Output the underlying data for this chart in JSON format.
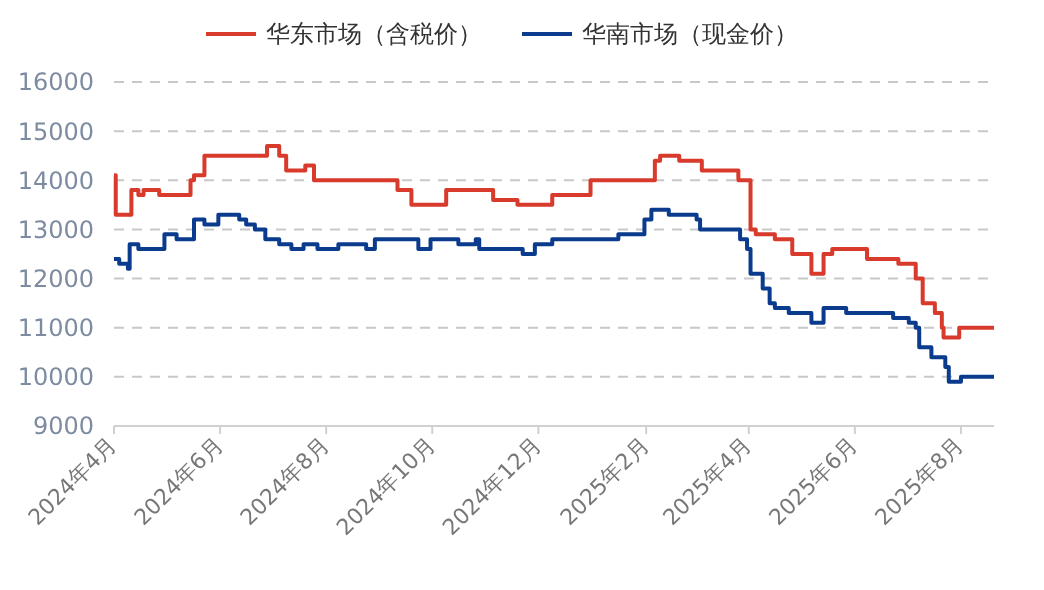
{
  "chart_data": {
    "type": "step",
    "legend": "top",
    "grid": "y",
    "marker": "none",
    "line_style": "solid",
    "xlim": [
      "2024-04-08",
      "2025-08-27"
    ],
    "xticks": [
      {
        "value": "2024-04-08",
        "label": "2024年4月"
      },
      {
        "value": "2024-06-08",
        "label": "2024年6月"
      },
      {
        "value": "2024-08-08",
        "label": "2024年8月"
      },
      {
        "value": "2024-10-08",
        "label": "2024年10月"
      },
      {
        "value": "2024-12-08",
        "label": "2024年12月"
      },
      {
        "value": "2025-02-08",
        "label": "2025年2月"
      },
      {
        "value": "2025-04-08",
        "label": "2025年4月"
      },
      {
        "value": "2025-06-08",
        "label": "2025年6月"
      },
      {
        "value": "2025-08-08",
        "label": "2025年8月"
      }
    ],
    "ylim": [
      9000,
      16000
    ],
    "yticks": [
      9000,
      10000,
      11000,
      12000,
      13000,
      14000,
      15000,
      16000
    ],
    "series": [
      {
        "name": "华东市场（含税价）",
        "color": "#d83a2c",
        "x": [
          "2024-04-08",
          "2024-04-09",
          "2024-04-18",
          "2024-04-22",
          "2024-04-25",
          "2024-05-04",
          "2024-05-22",
          "2024-05-24",
          "2024-05-30",
          "2024-07-05",
          "2024-07-12",
          "2024-07-16",
          "2024-07-27",
          "2024-08-01",
          "2024-09-18",
          "2024-09-26",
          "2024-10-16",
          "2024-11-12",
          "2024-11-26",
          "2024-12-16",
          "2025-01-07",
          "2025-02-13",
          "2025-02-16",
          "2025-02-27",
          "2025-03-12",
          "2025-04-02",
          "2025-04-09",
          "2025-04-12",
          "2025-04-23",
          "2025-05-03",
          "2025-05-14",
          "2025-05-21",
          "2025-05-26",
          "2025-06-15",
          "2025-07-03",
          "2025-07-13",
          "2025-07-17",
          "2025-07-24",
          "2025-07-28",
          "2025-07-29",
          "2025-08-07",
          "2025-08-27"
        ],
        "values": [
          14100,
          13300,
          13800,
          13700,
          13800,
          13700,
          14000,
          14100,
          14500,
          14700,
          14500,
          14200,
          14300,
          14000,
          13800,
          13500,
          13800,
          13600,
          13500,
          13700,
          14000,
          14400,
          14500,
          14400,
          14200,
          14000,
          13000,
          12900,
          12800,
          12500,
          12100,
          12500,
          12600,
          12400,
          12300,
          12000,
          11500,
          11300,
          11000,
          10800,
          11000,
          11000
        ]
      },
      {
        "name": "华南市场（现金价）",
        "color": "#0b3b8c",
        "x": [
          "2024-04-08",
          "2024-04-11",
          "2024-04-16",
          "2024-04-17",
          "2024-04-22",
          "2024-05-07",
          "2024-05-14",
          "2024-05-24",
          "2024-05-30",
          "2024-06-07",
          "2024-06-19",
          "2024-06-23",
          "2024-06-28",
          "2024-07-04",
          "2024-07-12",
          "2024-07-19",
          "2024-07-26",
          "2024-08-03",
          "2024-08-15",
          "2024-08-31",
          "2024-09-05",
          "2024-09-30",
          "2024-10-07",
          "2024-10-23",
          "2024-11-02",
          "2024-11-04",
          "2024-11-29",
          "2024-12-06",
          "2024-12-16",
          "2025-01-23",
          "2025-02-07",
          "2025-02-11",
          "2025-02-21",
          "2025-03-09",
          "2025-03-11",
          "2025-04-03",
          "2025-04-07",
          "2025-04-09",
          "2025-04-16",
          "2025-04-20",
          "2025-04-23",
          "2025-05-01",
          "2025-05-14",
          "2025-05-21",
          "2025-06-03",
          "2025-06-30",
          "2025-07-09",
          "2025-07-13",
          "2025-07-15",
          "2025-07-22",
          "2025-07-30",
          "2025-08-01",
          "2025-08-08",
          "2025-08-27"
        ],
        "values": [
          12400,
          12300,
          12200,
          12700,
          12600,
          12900,
          12800,
          13200,
          13100,
          13300,
          13200,
          13100,
          13000,
          12800,
          12700,
          12600,
          12700,
          12600,
          12700,
          12600,
          12800,
          12600,
          12800,
          12700,
          12800,
          12600,
          12500,
          12700,
          12800,
          12900,
          13200,
          13400,
          13300,
          13200,
          13000,
          12800,
          12600,
          12100,
          11800,
          11500,
          11400,
          11300,
          11100,
          11400,
          11300,
          11200,
          11100,
          11000,
          10600,
          10400,
          10200,
          9900,
          10000,
          10000
        ]
      }
    ]
  }
}
